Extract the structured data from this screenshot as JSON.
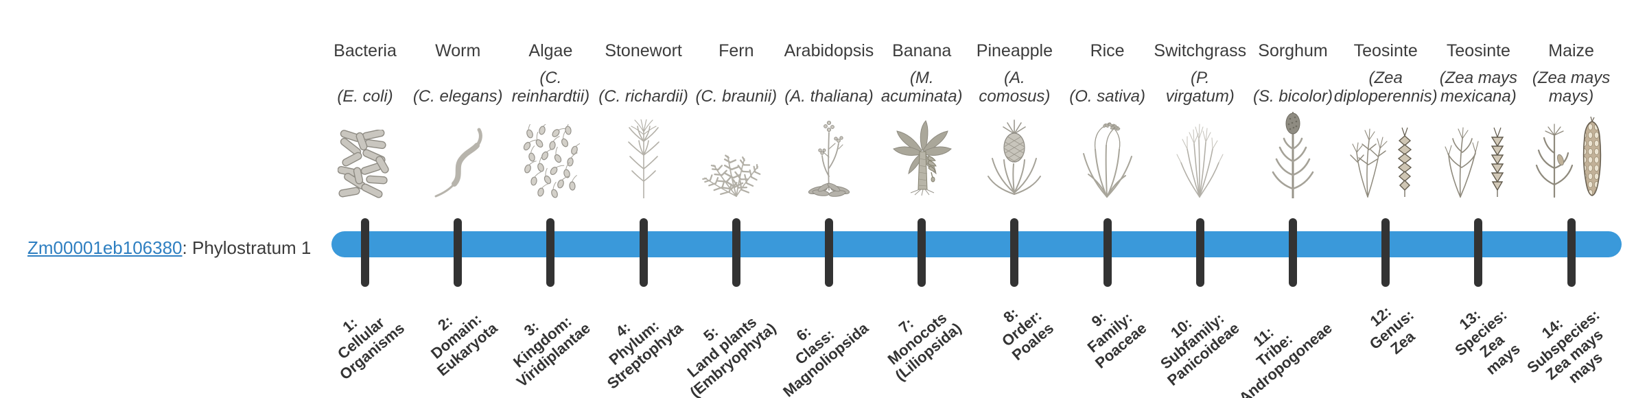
{
  "gene": {
    "id": "Zm00001eb106380",
    "suffix": ": Phylostratum 1",
    "link_color": "#2e7fc1",
    "text_color": "#3b3b3b"
  },
  "timeline": {
    "bar_color": "#3a99da",
    "tick_color": "#333333",
    "label_color": "#333333"
  },
  "organisms": [
    {
      "common": "Bacteria",
      "sci": "(E. coli)",
      "icon": "bacteria-icon",
      "stratum_label": "1:\nCellular\nOrganisms"
    },
    {
      "common": "Worm",
      "sci": "(C. elegans)",
      "icon": "worm-icon",
      "stratum_label": "2:\nDomain:\nEukaryota"
    },
    {
      "common": "Algae",
      "sci": "(C.\nreinhardtii)",
      "icon": "algae-icon",
      "stratum_label": "3:\nKingdom:\nViridiplantae"
    },
    {
      "common": "Stonewort",
      "sci": "(C. richardii)",
      "icon": "stonewort-icon",
      "stratum_label": "4:\nPhylum:\nStreptophyta"
    },
    {
      "common": "Fern",
      "sci": "(C. braunii)",
      "icon": "fern-icon",
      "stratum_label": "5:\nLand plants\n(Embryophyta)"
    },
    {
      "common": "Arabidopsis",
      "sci": "(A. thaliana)",
      "icon": "arabidopsis-icon",
      "stratum_label": "6:\nClass:\nMagnoliopsida"
    },
    {
      "common": "Banana",
      "sci": "(M.\nacuminata)",
      "icon": "banana-icon",
      "stratum_label": "7:\nMonocots\n(Liliopsida)"
    },
    {
      "common": "Pineapple",
      "sci": "(A.\ncomosus)",
      "icon": "pineapple-icon",
      "stratum_label": "8:\nOrder:\nPoales"
    },
    {
      "common": "Rice",
      "sci": "(O. sativa)",
      "icon": "rice-icon",
      "stratum_label": "9:\nFamily:\nPoaceae"
    },
    {
      "common": "Switchgrass",
      "sci": "(P.\nvirgatum)",
      "icon": "switchgrass-icon",
      "stratum_label": "10:\nSubfamily:\nPanicoideae"
    },
    {
      "common": "Sorghum",
      "sci": "(S. bicolor)",
      "icon": "sorghum-icon",
      "stratum_label": "11:\nTribe:\nAndropogoneae"
    },
    {
      "common": "Teosinte",
      "sci": "(Zea\ndiploperennis)",
      "icon": "teosinte-diploperennis-icon",
      "stratum_label": "12:\nGenus:\nZea"
    },
    {
      "common": "Teosinte",
      "sci": "(Zea mays\nmexicana)",
      "icon": "teosinte-mexicana-icon",
      "stratum_label": "13:\nSpecies:\nZea\nmays"
    },
    {
      "common": "Maize",
      "sci": "(Zea mays\nmays)",
      "icon": "maize-icon",
      "stratum_label": "14:\nSubspecies:\nZea mays\nmays"
    }
  ]
}
